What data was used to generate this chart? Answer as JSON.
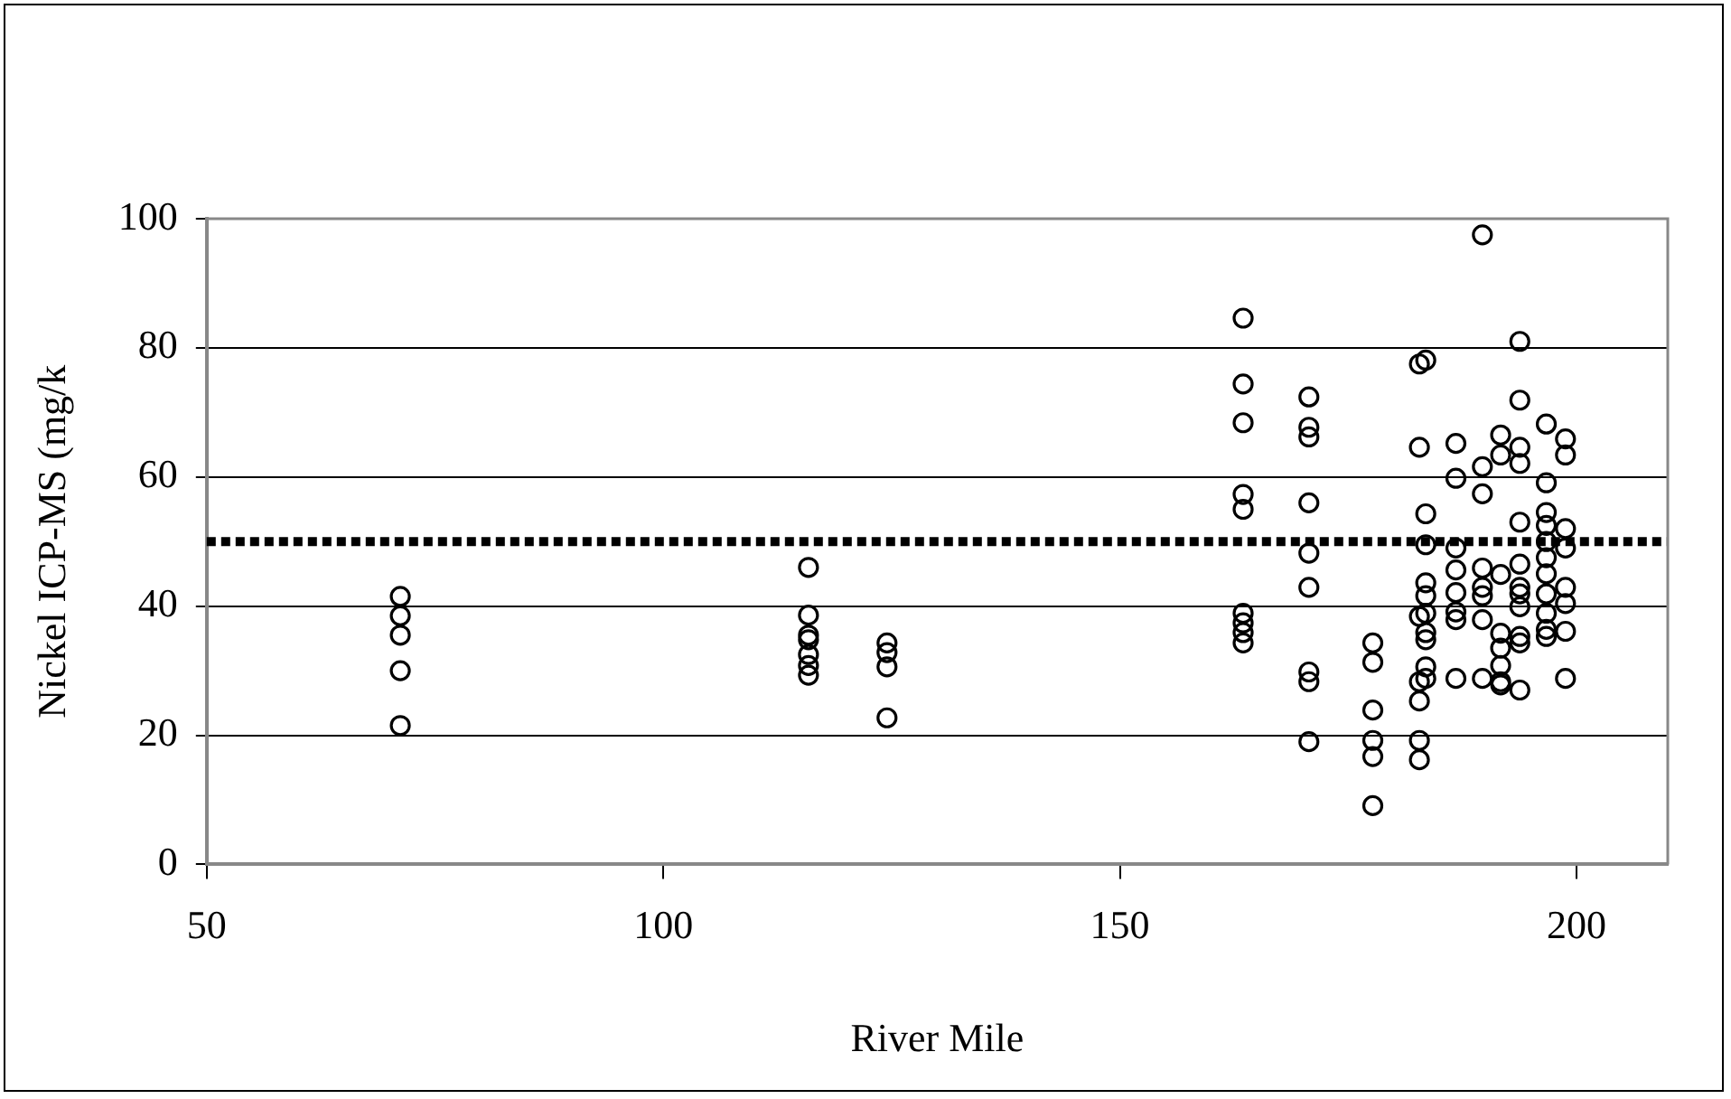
{
  "chart_data": {
    "type": "scatter",
    "xlabel": "River Mile",
    "ylabel": "Nickel ICP-MS (mg/k",
    "xlim": [
      50,
      210
    ],
    "xticks": [
      50,
      100,
      150,
      200
    ],
    "ylim": [
      0,
      100
    ],
    "yticks": [
      0,
      20,
      40,
      60,
      80,
      100
    ],
    "grid": "y",
    "legend": false,
    "marker": "circle",
    "series": [
      {
        "color": "#000000",
        "x": [
          71.2,
          71.2,
          71.2,
          71.2,
          71.2,
          115.9,
          115.9,
          115.9,
          115.9,
          115.9,
          115.9,
          115.9,
          124.5,
          124.5,
          124.5,
          124.5,
          163.5,
          163.5,
          163.5,
          163.5,
          163.5,
          163.5,
          163.5,
          163.5,
          163.5,
          170.7,
          170.7,
          170.7,
          170.7,
          170.7,
          170.7,
          170.7,
          170.7,
          170.7,
          177.7,
          177.7,
          177.7,
          177.7,
          177.7,
          177.7,
          182.8,
          182.8,
          182.8,
          182.8,
          182.8,
          182.8,
          182.8,
          183.5,
          183.5,
          183.5,
          183.5,
          183.5,
          183.5,
          183.5,
          183.5,
          183.5,
          183.5,
          186.8,
          186.8,
          186.8,
          186.8,
          186.8,
          186.8,
          186.8,
          186.8,
          189.7,
          189.7,
          189.7,
          189.7,
          189.7,
          189.7,
          189.7,
          189.7,
          191.7,
          191.7,
          191.7,
          191.7,
          191.7,
          191.7,
          191.7,
          191.7,
          193.8,
          193.8,
          193.8,
          193.8,
          193.8,
          193.8,
          193.8,
          193.8,
          193.8,
          193.8,
          193.8,
          193.8,
          196.7,
          196.7,
          196.7,
          196.7,
          196.7,
          196.7,
          196.7,
          196.7,
          196.7,
          196.7,
          196.7,
          198.8,
          198.8,
          198.8,
          198.8,
          198.8,
          198.8,
          198.8,
          198.8
        ],
        "values": [
          41.5,
          38.5,
          35.5,
          30,
          21.5,
          46,
          38.6,
          35.5,
          34.8,
          32.5,
          30.8,
          29.3,
          34.3,
          32.8,
          30.6,
          22.7,
          84.6,
          74.4,
          68.4,
          57.3,
          55,
          38.9,
          37.4,
          35.9,
          34.3,
          72.4,
          67.7,
          66.2,
          56,
          48.2,
          42.9,
          29.8,
          28.3,
          19,
          34.3,
          31.3,
          23.9,
          19.2,
          16.7,
          9.1,
          77.5,
          64.6,
          38.4,
          28.3,
          25.3,
          19.2,
          16.2,
          78.1,
          54.3,
          49.5,
          43.6,
          41.6,
          38.9,
          35.9,
          34.8,
          30.6,
          28.8,
          65.2,
          59.8,
          49,
          45.6,
          42.1,
          39.1,
          37.9,
          28.8,
          97.5,
          61.6,
          57.4,
          45.9,
          42.9,
          41.6,
          37.9,
          28.8,
          66.5,
          63.4,
          44.9,
          35.8,
          33.5,
          30.8,
          28.3,
          27.8,
          81,
          71.9,
          64.6,
          62.1,
          53,
          46.5,
          42.9,
          41.9,
          39.9,
          35.3,
          34.3,
          27,
          68.2,
          59.1,
          54.5,
          52.5,
          50,
          47.5,
          45,
          41.9,
          38.9,
          36.4,
          35.3,
          65.9,
          63.4,
          52,
          49,
          42.9,
          40.4,
          36.1,
          28.8
        ]
      }
    ],
    "ref_lines": [
      {
        "axis": "y",
        "value": 50,
        "color": "#000000",
        "line_style": "dotted"
      }
    ]
  }
}
